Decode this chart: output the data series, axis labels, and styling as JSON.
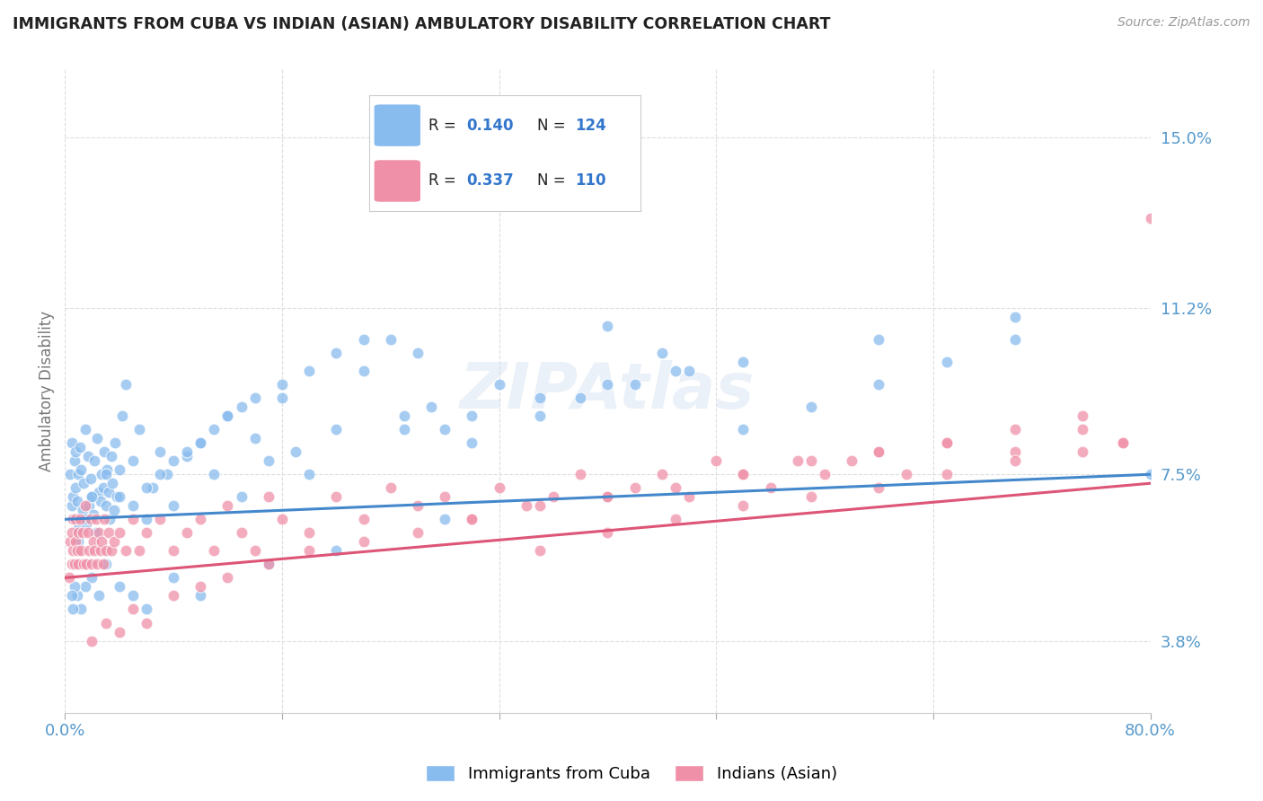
{
  "title": "IMMIGRANTS FROM CUBA VS INDIAN (ASIAN) AMBULATORY DISABILITY CORRELATION CHART",
  "source": "Source: ZipAtlas.com",
  "ylabel": "Ambulatory Disability",
  "yticks": [
    3.8,
    7.5,
    11.2,
    15.0
  ],
  "ytick_labels": [
    "3.8%",
    "7.5%",
    "11.2%",
    "15.0%"
  ],
  "xlim": [
    0.0,
    80.0
  ],
  "ylim": [
    2.2,
    16.5
  ],
  "cuba_color": "#88bbee",
  "india_color": "#f090a8",
  "cuba_line_color": "#4488cc",
  "india_line_color": "#dd5577",
  "watermark_color": "#c8d8e8",
  "background_color": "#ffffff",
  "grid_color": "#dddddd",
  "title_color": "#222222",
  "axis_label_color": "#5599cc",
  "cuba_x": [
    0.4,
    0.5,
    0.5,
    0.6,
    0.7,
    0.7,
    0.8,
    0.8,
    0.9,
    1.0,
    1.0,
    1.1,
    1.2,
    1.3,
    1.4,
    1.5,
    1.6,
    1.7,
    1.8,
    1.9,
    2.0,
    2.1,
    2.2,
    2.3,
    2.4,
    2.5,
    2.6,
    2.7,
    2.8,
    2.9,
    3.0,
    3.1,
    3.2,
    3.3,
    3.4,
    3.5,
    3.6,
    3.7,
    3.8,
    4.0,
    4.2,
    4.5,
    5.0,
    5.5,
    6.0,
    6.5,
    7.0,
    7.5,
    8.0,
    9.0,
    10.0,
    11.0,
    12.0,
    13.0,
    14.0,
    15.0,
    16.0,
    17.0,
    18.0,
    20.0,
    22.0,
    24.0,
    25.0,
    26.0,
    27.0,
    28.0,
    30.0,
    32.0,
    35.0,
    38.0,
    40.0,
    42.0,
    44.0,
    46.0,
    50.0,
    55.0,
    60.0,
    65.0,
    70.0,
    28.0,
    20.0,
    15.0,
    10.0,
    8.0,
    6.0,
    5.0,
    4.0,
    3.0,
    2.5,
    2.0,
    1.5,
    1.2,
    0.9,
    0.7,
    0.6,
    0.5,
    1.0,
    1.5,
    2.0,
    3.0,
    4.0,
    5.0,
    6.0,
    7.0,
    8.0,
    9.0,
    10.0,
    11.0,
    12.0,
    13.0,
    14.0,
    16.0,
    18.0,
    20.0,
    22.0,
    25.0,
    30.0,
    35.0,
    40.0,
    45.0,
    50.0,
    60.0,
    70.0,
    80.0
  ],
  "cuba_y": [
    7.5,
    6.8,
    8.2,
    7.0,
    7.8,
    6.5,
    8.0,
    7.2,
    6.9,
    7.5,
    6.3,
    8.1,
    7.6,
    6.7,
    7.3,
    8.5,
    6.4,
    7.9,
    6.8,
    7.4,
    7.0,
    6.6,
    7.8,
    6.2,
    8.3,
    7.1,
    6.9,
    7.5,
    7.2,
    8.0,
    6.8,
    7.6,
    7.1,
    6.5,
    7.9,
    7.3,
    6.7,
    8.2,
    7.0,
    7.6,
    8.8,
    9.5,
    7.8,
    8.5,
    6.5,
    7.2,
    8.0,
    7.5,
    6.8,
    7.9,
    8.2,
    7.5,
    8.8,
    7.0,
    8.3,
    7.8,
    9.2,
    8.0,
    7.5,
    8.5,
    9.8,
    10.5,
    8.8,
    10.2,
    9.0,
    8.5,
    8.2,
    9.5,
    8.8,
    9.2,
    10.8,
    9.5,
    10.2,
    9.8,
    8.5,
    9.0,
    9.5,
    10.0,
    10.5,
    6.5,
    5.8,
    5.5,
    4.8,
    5.2,
    4.5,
    4.8,
    5.0,
    5.5,
    4.8,
    5.2,
    5.0,
    4.5,
    4.8,
    5.0,
    4.5,
    4.8,
    6.0,
    6.5,
    7.0,
    7.5,
    7.0,
    6.8,
    7.2,
    7.5,
    7.8,
    8.0,
    8.2,
    8.5,
    8.8,
    9.0,
    9.2,
    9.5,
    9.8,
    10.2,
    10.5,
    8.5,
    8.8,
    9.2,
    9.5,
    9.8,
    10.0,
    10.5,
    11.0,
    7.5
  ],
  "india_x": [
    0.3,
    0.4,
    0.5,
    0.5,
    0.6,
    0.6,
    0.7,
    0.8,
    0.8,
    0.9,
    1.0,
    1.0,
    1.1,
    1.2,
    1.3,
    1.4,
    1.5,
    1.6,
    1.7,
    1.8,
    1.9,
    2.0,
    2.1,
    2.2,
    2.3,
    2.4,
    2.5,
    2.6,
    2.7,
    2.8,
    2.9,
    3.0,
    3.2,
    3.4,
    3.6,
    4.0,
    4.5,
    5.0,
    5.5,
    6.0,
    7.0,
    8.0,
    9.0,
    10.0,
    11.0,
    12.0,
    13.0,
    14.0,
    15.0,
    16.0,
    18.0,
    20.0,
    22.0,
    24.0,
    26.0,
    28.0,
    30.0,
    32.0,
    34.0,
    36.0,
    38.0,
    40.0,
    42.0,
    44.0,
    46.0,
    48.0,
    50.0,
    52.0,
    54.0,
    56.0,
    58.0,
    60.0,
    62.0,
    65.0,
    70.0,
    75.0,
    78.0,
    2.0,
    3.0,
    4.0,
    5.0,
    6.0,
    8.0,
    10.0,
    12.0,
    15.0,
    18.0,
    22.0,
    26.0,
    30.0,
    35.0,
    40.0,
    45.0,
    50.0,
    55.0,
    60.0,
    65.0,
    70.0,
    75.0,
    80.0,
    35.0,
    40.0,
    45.0,
    50.0,
    55.0,
    60.0,
    65.0,
    70.0,
    75.0,
    78.0
  ],
  "india_y": [
    5.2,
    6.0,
    5.5,
    6.2,
    5.8,
    6.5,
    5.5,
    6.0,
    6.5,
    5.8,
    6.2,
    5.5,
    6.5,
    5.8,
    6.2,
    5.5,
    6.8,
    5.5,
    6.2,
    5.8,
    6.5,
    5.5,
    6.0,
    5.8,
    6.5,
    5.5,
    6.2,
    5.8,
    6.0,
    5.5,
    6.5,
    5.8,
    6.2,
    5.8,
    6.0,
    6.2,
    5.8,
    6.5,
    5.8,
    6.2,
    6.5,
    5.8,
    6.2,
    6.5,
    5.8,
    6.8,
    6.2,
    5.8,
    7.0,
    6.5,
    6.2,
    7.0,
    6.5,
    7.2,
    6.8,
    7.0,
    6.5,
    7.2,
    6.8,
    7.0,
    7.5,
    7.0,
    7.2,
    7.5,
    7.0,
    7.8,
    7.5,
    7.2,
    7.8,
    7.5,
    7.8,
    8.0,
    7.5,
    8.2,
    8.0,
    8.5,
    8.2,
    3.8,
    4.2,
    4.0,
    4.5,
    4.2,
    4.8,
    5.0,
    5.2,
    5.5,
    5.8,
    6.0,
    6.2,
    6.5,
    6.8,
    7.0,
    7.2,
    7.5,
    7.8,
    8.0,
    8.2,
    8.5,
    8.8,
    13.2,
    5.8,
    6.2,
    6.5,
    6.8,
    7.0,
    7.2,
    7.5,
    7.8,
    8.0,
    8.2
  ]
}
